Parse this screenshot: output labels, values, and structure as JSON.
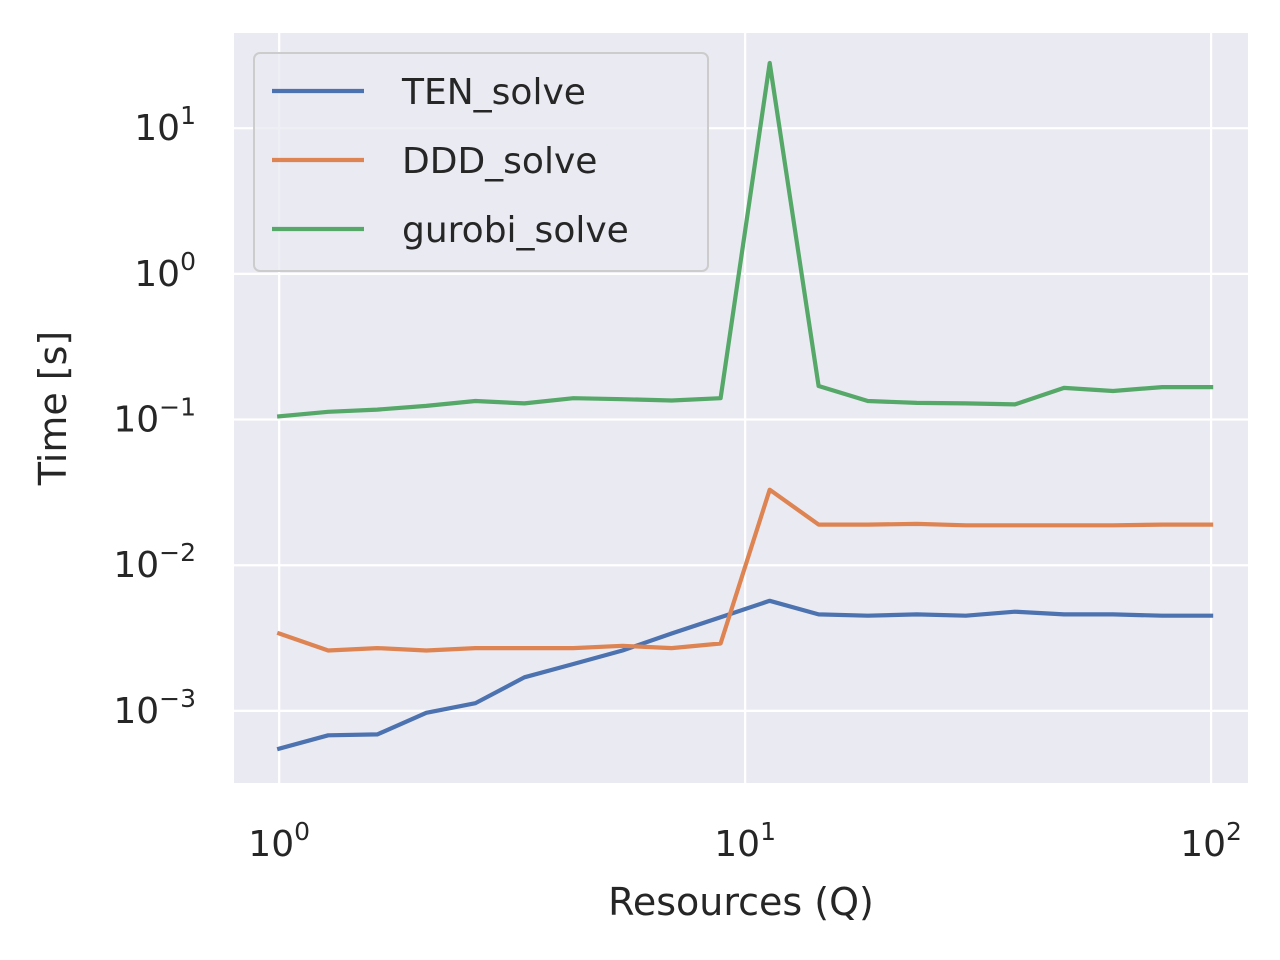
{
  "chart_data": {
    "type": "line",
    "title": "",
    "xlabel": "Resources (Q)",
    "ylabel": "Time [s]",
    "xscale": "log",
    "yscale": "log",
    "xlim": [
      0.8,
      120
    ],
    "ylim": [
      0.00032,
      45
    ],
    "grid": true,
    "legend_position": "top-left",
    "x_ticks": [
      {
        "base": "10",
        "exp": "0",
        "value": 1
      },
      {
        "base": "10",
        "exp": "1",
        "value": 10
      },
      {
        "base": "10",
        "exp": "2",
        "value": 100
      }
    ],
    "y_ticks": [
      {
        "base": "10",
        "exp": "−3",
        "value": 0.001
      },
      {
        "base": "10",
        "exp": "−2",
        "value": 0.01
      },
      {
        "base": "10",
        "exp": "−1",
        "value": 0.1
      },
      {
        "base": "10",
        "exp": "0",
        "value": 1
      },
      {
        "base": "10",
        "exp": "1",
        "value": 10
      }
    ],
    "x": [
      1.0,
      1.274,
      1.624,
      2.069,
      2.637,
      3.36,
      4.281,
      5.456,
      6.952,
      8.859,
      11.29,
      14.38,
      18.33,
      23.36,
      29.76,
      37.93,
      48.33,
      61.58,
      78.48,
      100.0
    ],
    "series": [
      {
        "name": "TEN_solve",
        "color": "#4c72b0",
        "values": [
          0.00055,
          0.00068,
          0.00069,
          0.00097,
          0.00113,
          0.0017,
          0.0021,
          0.0026,
          0.0034,
          0.0044,
          0.0057,
          0.0046,
          0.0045,
          0.0046,
          0.0045,
          0.0048,
          0.0046,
          0.0046,
          0.0045,
          0.0045
        ]
      },
      {
        "name": "DDD_solve",
        "color": "#dd8452",
        "values": [
          0.0034,
          0.0026,
          0.0027,
          0.0026,
          0.0027,
          0.0027,
          0.0027,
          0.0028,
          0.0027,
          0.0029,
          0.033,
          0.019,
          0.019,
          0.0192,
          0.0188,
          0.0188,
          0.0188,
          0.0188,
          0.019,
          0.019
        ]
      },
      {
        "name": "gurobi_solve",
        "color": "#55a868",
        "values": [
          0.105,
          0.113,
          0.117,
          0.124,
          0.134,
          0.129,
          0.14,
          0.138,
          0.135,
          0.14,
          28.0,
          0.17,
          0.134,
          0.13,
          0.129,
          0.127,
          0.165,
          0.157,
          0.167,
          0.167
        ]
      }
    ]
  }
}
